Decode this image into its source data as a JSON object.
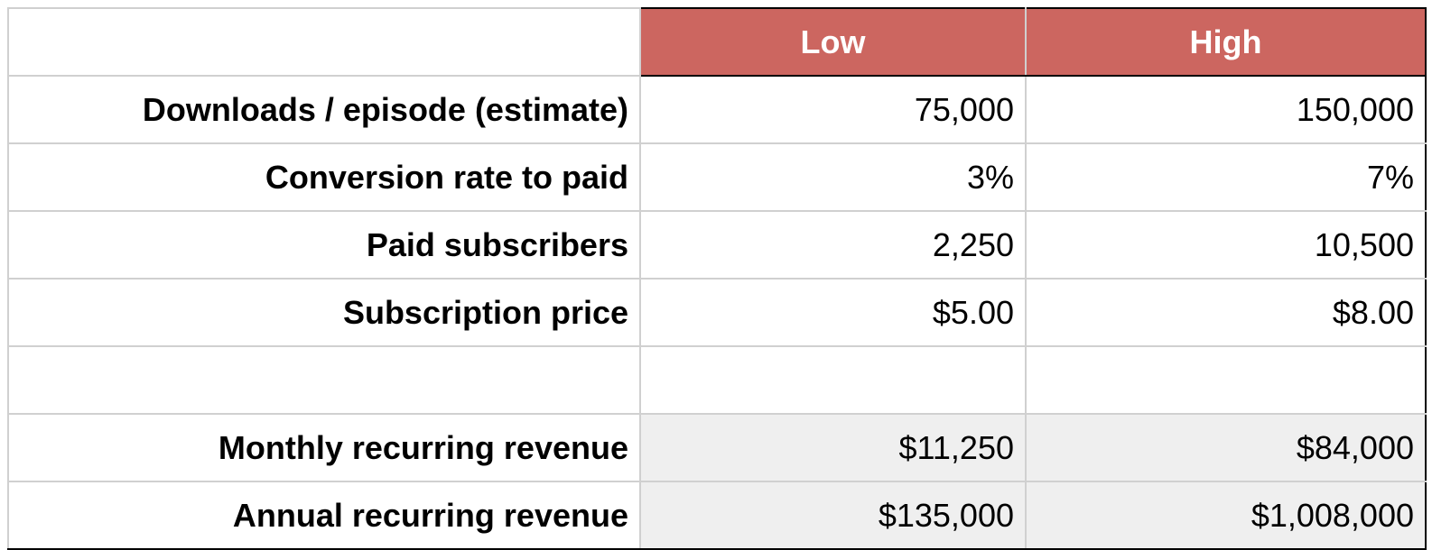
{
  "header": {
    "low": "Low",
    "high": "High"
  },
  "rows": [
    {
      "label": "Downloads / episode (estimate)",
      "low": "75,000",
      "high": "150,000"
    },
    {
      "label": "Conversion rate to paid",
      "low": "3%",
      "high": "7%"
    },
    {
      "label": "Paid subscribers",
      "low": "2,250",
      "high": "10,500"
    },
    {
      "label": "Subscription price",
      "low": "$5.00",
      "high": "$8.00"
    },
    {
      "label": "",
      "low": "",
      "high": ""
    },
    {
      "label": "Monthly recurring revenue",
      "low": "$11,250",
      "high": "$84,000"
    },
    {
      "label": "Annual recurring revenue",
      "low": "$135,000",
      "high": "$1,008,000"
    }
  ],
  "colors": {
    "header_bg": "#cc6660",
    "header_text": "#ffffff",
    "summary_bg": "#efefef",
    "grid": "#d0d0d0"
  }
}
